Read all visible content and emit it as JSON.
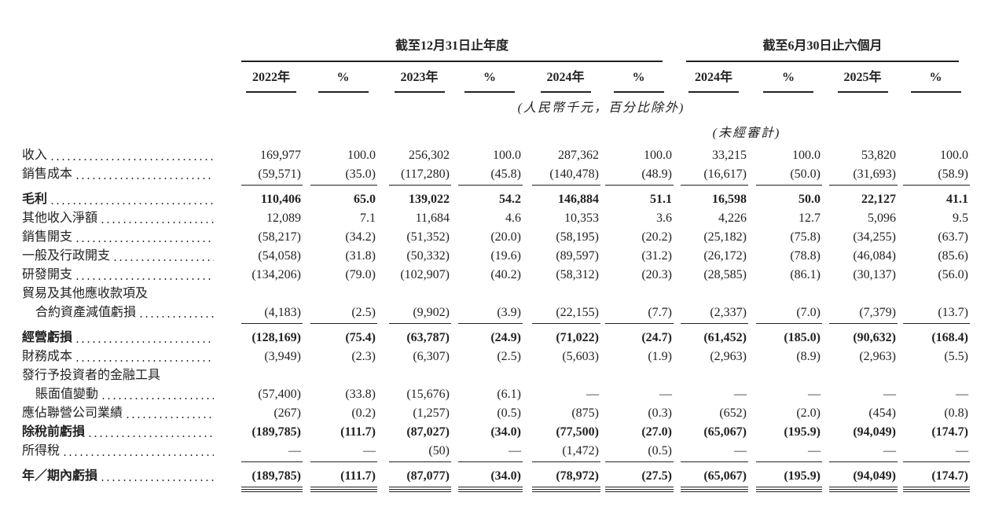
{
  "header": {
    "groups": [
      "截至12月31日止年度",
      "截至6月30日止六個月"
    ],
    "columns": [
      "2022年",
      "%",
      "2023年",
      "%",
      "2024年",
      "%",
      "2024年",
      "%",
      "2025年",
      "%"
    ],
    "unit_note": "(人民幣千元，百分比除外)",
    "audit_note": "(未經審計)"
  },
  "table": {
    "rows": [
      {
        "label": "收入",
        "cells": [
          "169,977",
          "100.0",
          "256,302",
          "100.0",
          "287,362",
          "100.0",
          "33,215",
          "100.0",
          "53,820",
          "100.0"
        ]
      },
      {
        "label": "銷售成本",
        "cells": [
          "(59,571)",
          "(35.0)",
          "(117,280)",
          "(45.8)",
          "(140,478)",
          "(48.9)",
          "(16,617)",
          "(50.0)",
          "(31,693)",
          "(58.9)"
        ],
        "rule": "single"
      },
      {
        "label": "毛利",
        "bold": true,
        "cells": [
          "110,406",
          "65.0",
          "139,022",
          "54.2",
          "146,884",
          "51.1",
          "16,598",
          "50.0",
          "22,127",
          "41.1"
        ]
      },
      {
        "label": "其他收入淨額",
        "cells": [
          "12,089",
          "7.1",
          "11,684",
          "4.6",
          "10,353",
          "3.6",
          "4,226",
          "12.7",
          "5,096",
          "9.5"
        ]
      },
      {
        "label": "銷售開支",
        "cells": [
          "(58,217)",
          "(34.2)",
          "(51,352)",
          "(20.0)",
          "(58,195)",
          "(20.2)",
          "(25,182)",
          "(75.8)",
          "(34,255)",
          "(63.7)"
        ]
      },
      {
        "label": "一般及行政開支",
        "cells": [
          "(54,058)",
          "(31.8)",
          "(50,332)",
          "(19.6)",
          "(89,597)",
          "(31.2)",
          "(26,172)",
          "(78.8)",
          "(46,084)",
          "(85.6)"
        ]
      },
      {
        "label": "研發開支",
        "cells": [
          "(134,206)",
          "(79.0)",
          "(102,907)",
          "(40.2)",
          "(58,312)",
          "(20.3)",
          "(28,585)",
          "(86.1)",
          "(30,137)",
          "(56.0)"
        ]
      },
      {
        "label": "貿易及其他應收款項及"
      },
      {
        "label": "合約資產減值虧損",
        "indent": true,
        "cells": [
          "(4,183)",
          "(2.5)",
          "(9,902)",
          "(3.9)",
          "(22,155)",
          "(7.7)",
          "(2,337)",
          "(7.0)",
          "(7,379)",
          "(13.7)"
        ],
        "rule": "single"
      },
      {
        "label": "經營虧損",
        "bold": true,
        "cells": [
          "(128,169)",
          "(75.4)",
          "(63,787)",
          "(24.9)",
          "(71,022)",
          "(24.7)",
          "(61,452)",
          "(185.0)",
          "(90,632)",
          "(168.4)"
        ]
      },
      {
        "label": "財務成本",
        "cells": [
          "(3,949)",
          "(2.3)",
          "(6,307)",
          "(2.5)",
          "(5,603)",
          "(1.9)",
          "(2,963)",
          "(8.9)",
          "(2,963)",
          "(5.5)"
        ]
      },
      {
        "label": "發行予投資者的金融工具"
      },
      {
        "label": "賬面值變動",
        "indent": true,
        "cells": [
          "(57,400)",
          "(33.8)",
          "(15,676)",
          "(6.1)",
          "—",
          "—",
          "—",
          "—",
          "—",
          "—"
        ]
      },
      {
        "label": "應佔聯營公司業績",
        "cells": [
          "(267)",
          "(0.2)",
          "(1,257)",
          "(0.5)",
          "(875)",
          "(0.3)",
          "(652)",
          "(2.0)",
          "(454)",
          "(0.8)"
        ]
      },
      {
        "label": "除稅前虧損",
        "bold": true,
        "cells": [
          "(189,785)",
          "(111.7)",
          "(87,027)",
          "(34.0)",
          "(77,500)",
          "(27.0)",
          "(65,067)",
          "(195.9)",
          "(94,049)",
          "(174.7)"
        ]
      },
      {
        "label": "所得稅",
        "cells": [
          "—",
          "—",
          "(50)",
          "—",
          "(1,472)",
          "(0.5)",
          "—",
          "—",
          "—",
          "—"
        ],
        "rule": "single"
      },
      {
        "label": "年／期內虧損",
        "bold": true,
        "cells": [
          "(189,785)",
          "(111.7)",
          "(87,077)",
          "(34.0)",
          "(78,972)",
          "(27.5)",
          "(65,067)",
          "(195.9)",
          "(94,049)",
          "(174.7)"
        ],
        "rule": "double"
      }
    ]
  }
}
